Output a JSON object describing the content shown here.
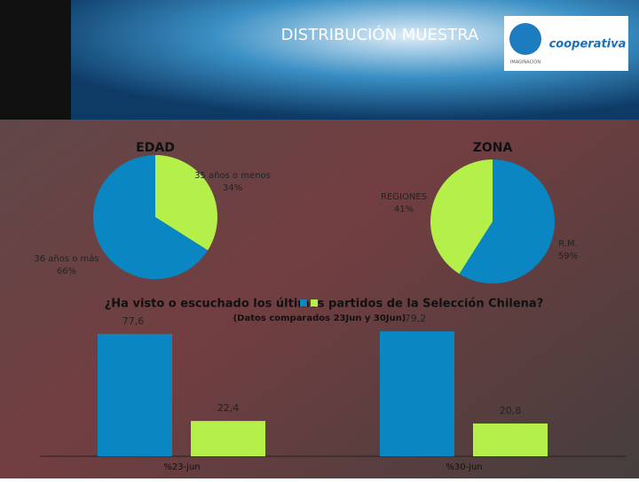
{
  "header": {
    "title": "DISTRIBUCIÓN MUESTRA",
    "logo": "cooperativa",
    "logo_sub": "IMAGINACION"
  },
  "chart_data": [
    {
      "type": "pie",
      "title": "EDAD",
      "categories": [
        "35 años o menos",
        "36 años o más"
      ],
      "values": [
        34,
        66
      ],
      "value_labels": [
        "34%",
        "66%"
      ],
      "colors": [
        "#b5f04a",
        "#0a86c2"
      ]
    },
    {
      "type": "pie",
      "title": "ZONA",
      "categories": [
        "R.M.",
        "REGIONES"
      ],
      "values": [
        59,
        41
      ],
      "value_labels": [
        "59%",
        "41%"
      ],
      "colors": [
        "#0a86c2",
        "#b5f04a"
      ]
    },
    {
      "type": "bar",
      "title": "¿Ha visto o escuchado los últimos partidos de la Selección Chilena?",
      "subtitle": "(Datos comparados 23Jun y 30Jun)",
      "categories": [
        "%23-jun",
        "%30-jun"
      ],
      "series": [
        {
          "color": "#0a86c2",
          "values": [
            77.6,
            79.2
          ],
          "value_labels": [
            "77,6",
            "79,2"
          ]
        },
        {
          "color": "#b5f04a",
          "values": [
            22.4,
            20.8
          ],
          "value_labels": [
            "22,4",
            "20,8"
          ]
        }
      ],
      "ylim": [
        0,
        100
      ]
    }
  ]
}
